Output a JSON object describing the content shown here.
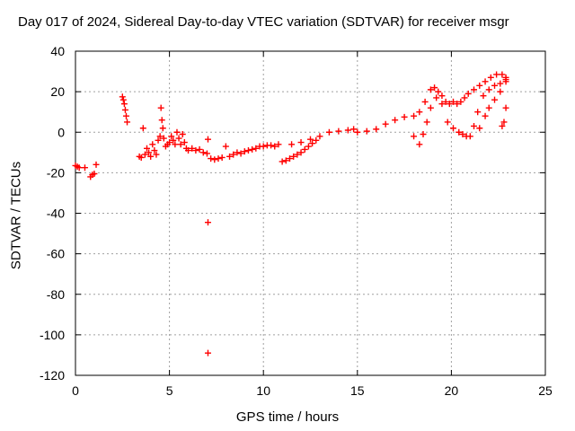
{
  "chart_data": {
    "type": "scatter",
    "title": "Day 017 of 2024, Sidereal Day-to-day VTEC variation (SDTVAR) for receiver msgr",
    "xlabel": "GPS time / hours",
    "ylabel": "SDTVAR / TECUs",
    "xlim": [
      0,
      25
    ],
    "ylim": [
      -120,
      40
    ],
    "x_ticks": [
      0,
      5,
      10,
      15,
      20,
      25
    ],
    "y_ticks": [
      -120,
      -100,
      -80,
      -60,
      -40,
      -20,
      0,
      20,
      40
    ],
    "grid": true,
    "marker": "+",
    "marker_color": "#ff0000",
    "series": [
      {
        "name": "SDTVAR",
        "points": [
          [
            0.0,
            -16.5
          ],
          [
            0.1,
            -17
          ],
          [
            0.2,
            -17.5
          ],
          [
            0.5,
            -17.5
          ],
          [
            0.8,
            -22
          ],
          [
            0.9,
            -21
          ],
          [
            1.0,
            -20.5
          ],
          [
            1.1,
            -16
          ],
          [
            2.5,
            17.5
          ],
          [
            2.55,
            16
          ],
          [
            2.6,
            14
          ],
          [
            2.65,
            11
          ],
          [
            2.7,
            8
          ],
          [
            2.75,
            5
          ],
          [
            3.4,
            -12
          ],
          [
            3.5,
            -12.5
          ],
          [
            3.6,
            2
          ],
          [
            3.7,
            -11
          ],
          [
            3.8,
            -8
          ],
          [
            3.9,
            -10
          ],
          [
            4.0,
            -12
          ],
          [
            4.1,
            -6
          ],
          [
            4.2,
            -9
          ],
          [
            4.3,
            -11
          ],
          [
            4.4,
            -4
          ],
          [
            4.5,
            -2
          ],
          [
            4.55,
            12
          ],
          [
            4.6,
            6
          ],
          [
            4.65,
            2
          ],
          [
            4.7,
            -3
          ],
          [
            4.8,
            -7
          ],
          [
            4.9,
            -6
          ],
          [
            5.0,
            -5
          ],
          [
            5.1,
            -2
          ],
          [
            5.2,
            -4
          ],
          [
            5.3,
            -6
          ],
          [
            5.4,
            0
          ],
          [
            5.5,
            -3
          ],
          [
            5.6,
            -6
          ],
          [
            5.7,
            -1
          ],
          [
            5.8,
            -5
          ],
          [
            5.9,
            -8
          ],
          [
            6.0,
            -9
          ],
          [
            6.2,
            -8
          ],
          [
            6.4,
            -9
          ],
          [
            6.6,
            -8.5
          ],
          [
            6.8,
            -10
          ],
          [
            7.0,
            -10.5
          ],
          [
            7.05,
            -3.5
          ],
          [
            7.05,
            -44.5
          ],
          [
            7.05,
            -109
          ],
          [
            7.2,
            -13
          ],
          [
            7.4,
            -13.5
          ],
          [
            7.6,
            -13
          ],
          [
            7.8,
            -12.5
          ],
          [
            8.0,
            -7
          ],
          [
            8.2,
            -12
          ],
          [
            8.4,
            -11
          ],
          [
            8.6,
            -10
          ],
          [
            8.8,
            -10.5
          ],
          [
            9.0,
            -9.5
          ],
          [
            9.2,
            -9
          ],
          [
            9.4,
            -8.5
          ],
          [
            9.6,
            -8
          ],
          [
            9.8,
            -7
          ],
          [
            10.0,
            -7
          ],
          [
            10.2,
            -6.5
          ],
          [
            10.4,
            -6.5
          ],
          [
            10.6,
            -7
          ],
          [
            10.8,
            -6
          ],
          [
            11.0,
            -14.5
          ],
          [
            11.2,
            -14
          ],
          [
            11.4,
            -13
          ],
          [
            11.6,
            -12
          ],
          [
            11.8,
            -11
          ],
          [
            12.0,
            -10
          ],
          [
            12.2,
            -8.5
          ],
          [
            12.4,
            -7
          ],
          [
            12.6,
            -5.5
          ],
          [
            12.8,
            -4
          ],
          [
            11.5,
            -6
          ],
          [
            12.0,
            -5
          ],
          [
            12.5,
            -3.5
          ],
          [
            13.0,
            -2
          ],
          [
            13.5,
            0
          ],
          [
            14.0,
            0.5
          ],
          [
            14.5,
            1
          ],
          [
            14.8,
            1.5
          ],
          [
            15.0,
            0
          ],
          [
            15.5,
            0.5
          ],
          [
            16.0,
            1.5
          ],
          [
            16.5,
            4
          ],
          [
            17.0,
            6
          ],
          [
            17.5,
            7.5
          ],
          [
            18.0,
            8
          ],
          [
            18.3,
            10
          ],
          [
            18.6,
            15
          ],
          [
            18.9,
            21
          ],
          [
            19.1,
            22
          ],
          [
            19.3,
            20
          ],
          [
            19.5,
            18
          ],
          [
            19.7,
            15
          ],
          [
            19.9,
            14
          ],
          [
            20.1,
            15
          ],
          [
            20.3,
            14
          ],
          [
            20.5,
            15
          ],
          [
            20.7,
            17
          ],
          [
            20.9,
            19
          ],
          [
            21.2,
            21
          ],
          [
            21.5,
            23
          ],
          [
            21.8,
            25
          ],
          [
            22.1,
            27
          ],
          [
            22.4,
            28.5
          ],
          [
            22.7,
            28.5
          ],
          [
            22.9,
            27
          ],
          [
            18.0,
            -2
          ],
          [
            18.3,
            -6
          ],
          [
            18.5,
            -1
          ],
          [
            18.7,
            5
          ],
          [
            18.9,
            12
          ],
          [
            19.2,
            17
          ],
          [
            19.5,
            14
          ],
          [
            19.8,
            5
          ],
          [
            20.1,
            2
          ],
          [
            20.4,
            0
          ],
          [
            20.6,
            -1
          ],
          [
            20.8,
            -2
          ],
          [
            21.0,
            -2
          ],
          [
            21.2,
            3
          ],
          [
            21.4,
            10
          ],
          [
            21.7,
            18
          ],
          [
            22.0,
            21
          ],
          [
            22.3,
            23
          ],
          [
            22.6,
            24
          ],
          [
            22.9,
            26
          ],
          [
            21.5,
            2
          ],
          [
            21.8,
            8
          ],
          [
            22.0,
            12
          ],
          [
            22.3,
            16
          ],
          [
            22.6,
            20
          ],
          [
            22.9,
            25
          ],
          [
            22.9,
            12
          ],
          [
            22.8,
            5
          ],
          [
            22.7,
            3
          ]
        ]
      }
    ]
  }
}
